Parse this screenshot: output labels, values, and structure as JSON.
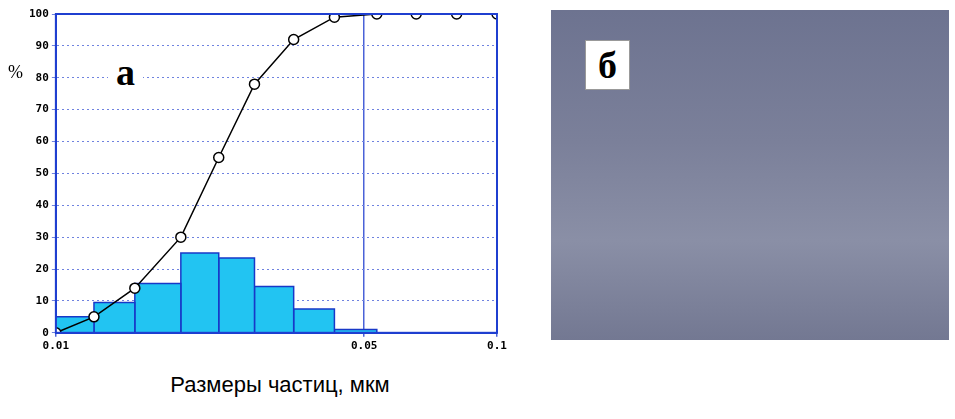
{
  "chart_data": {
    "type": "histogram",
    "panel": "а",
    "xlabel": "Размеры частиц, мкм",
    "ylabel": "%",
    "bins": [
      0.01,
      0.0122,
      0.0151,
      0.0192,
      0.0234,
      0.0282,
      0.0346,
      0.0428,
      0.0534
    ],
    "values": [
      5,
      9.5,
      15.5,
      25,
      23.5,
      14.5,
      7.5,
      1
    ],
    "color": "#22c4f2",
    "line": {
      "type": "line",
      "x": [
        0.01,
        0.0122,
        0.0151,
        0.0192,
        0.0234,
        0.0282,
        0.0346,
        0.0428,
        0.0534,
        0.0656,
        0.081,
        0.1
      ],
      "values": [
        0,
        5,
        14,
        30,
        55,
        78,
        92,
        99,
        100,
        100,
        100,
        100
      ],
      "color": "#000000",
      "marker": "circle"
    },
    "xlim": [
      0.01,
      0.1
    ],
    "xticks": [
      0.01,
      0.05,
      0.1
    ],
    "ylim": [
      0,
      100
    ],
    "yticks": [
      0,
      10,
      20,
      30,
      40,
      50,
      60,
      70,
      80,
      90,
      100
    ],
    "log": "x",
    "grid": true
  },
  "image": {
    "panel": "б"
  }
}
